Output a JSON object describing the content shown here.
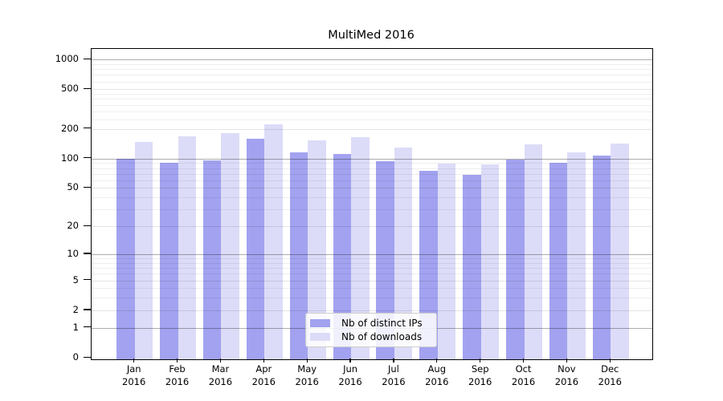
{
  "title": "MultiMed 2016",
  "chart_data": {
    "type": "bar",
    "title": "MultiMed 2016",
    "x_month_labels": [
      "Jan",
      "Feb",
      "Mar",
      "Apr",
      "May",
      "Jun",
      "Jul",
      "Aug",
      "Sep",
      "Oct",
      "Nov",
      "Dec"
    ],
    "x_year_label": "2016",
    "series": [
      {
        "name": "Nb of distinct IPs",
        "color": "#a2a2f0",
        "values": [
          100,
          91,
          95,
          159,
          116,
          111,
          94,
          75,
          68,
          97,
          91,
          108
        ]
      },
      {
        "name": "Nb of downloads",
        "color": "#dcdcf8",
        "values": [
          147,
          167,
          182,
          222,
          154,
          166,
          128,
          88,
          87,
          140,
          115,
          143
        ]
      }
    ],
    "y_axis": {
      "scale": "log(1+y)",
      "ticks": [
        0,
        1,
        2,
        5,
        10,
        20,
        50,
        100,
        200,
        500,
        1000
      ],
      "ylim": [
        0,
        1250
      ]
    },
    "legend_position": "lower center",
    "grid": true
  }
}
